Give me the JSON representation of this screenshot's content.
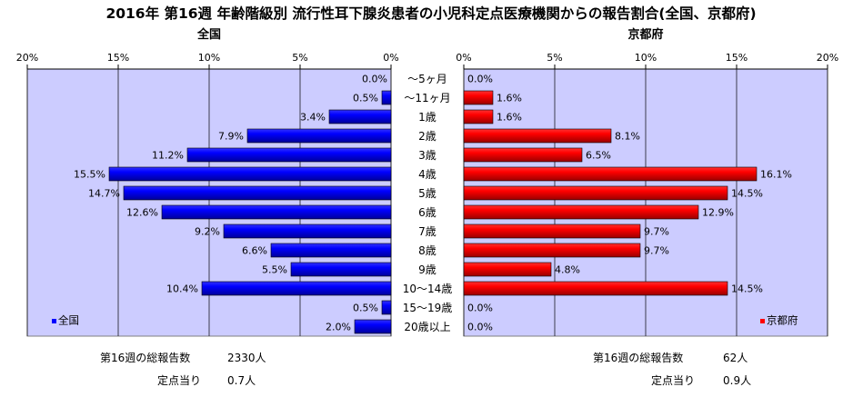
{
  "title": "2016年 第16週 年齢階級別 流行性耳下腺炎患者の小児科定点医療機関からの報告割合(全国、京都府)",
  "colors": {
    "plot_bg": "#ccccff",
    "national_bar": "#0000ff",
    "kyoto_bar": "#ff0000",
    "grid": "#000000"
  },
  "chart_data": {
    "type": "bar",
    "orientation": "horizontal",
    "categories": [
      "～5ヶ月",
      "～11ヶ月",
      "1歳",
      "2歳",
      "3歳",
      "4歳",
      "5歳",
      "6歳",
      "7歳",
      "8歳",
      "9歳",
      "10～14歳",
      "15～19歳",
      "20歳以上"
    ],
    "xlim": [
      0,
      20
    ],
    "ticks": [
      0,
      5,
      10,
      15,
      20
    ],
    "tick_labels": [
      "0%",
      "5%",
      "10%",
      "15%",
      "20%"
    ],
    "grid": true,
    "series": [
      {
        "name": "全国",
        "panel": "left",
        "heading": "全国",
        "legend": "全国",
        "legend_position": "bottom-left",
        "values": [
          0.0,
          0.5,
          3.4,
          7.9,
          11.2,
          15.5,
          14.7,
          12.6,
          9.2,
          6.6,
          5.5,
          10.4,
          0.5,
          2.0
        ],
        "labels": [
          "0.0%",
          "0.5%",
          "3.4%",
          "7.9%",
          "11.2%",
          "15.5%",
          "14.7%",
          "12.6%",
          "9.2%",
          "6.6%",
          "5.5%",
          "10.4%",
          "0.5%",
          "2.0%"
        ]
      },
      {
        "name": "京都府",
        "panel": "right",
        "heading": "京都府",
        "legend": "京都府",
        "legend_position": "bottom-right",
        "values": [
          0.0,
          1.6,
          1.6,
          8.1,
          6.5,
          16.1,
          14.5,
          12.9,
          9.7,
          9.7,
          4.8,
          14.5,
          0.0,
          0.0
        ],
        "labels": [
          "0.0%",
          "1.6%",
          "1.6%",
          "8.1%",
          "6.5%",
          "16.1%",
          "14.5%",
          "12.9%",
          "9.7%",
          "9.7%",
          "4.8%",
          "14.5%",
          "0.0%",
          "0.0%"
        ]
      }
    ]
  },
  "footer": {
    "national": {
      "total_label": "第16週の総報告数",
      "total_value": "2330人",
      "per_label": "定点当り",
      "per_value": "0.7人"
    },
    "kyoto": {
      "total_label": "第16週の総報告数",
      "total_value": "62人",
      "per_label": "定点当り",
      "per_value": "0.9人"
    }
  }
}
